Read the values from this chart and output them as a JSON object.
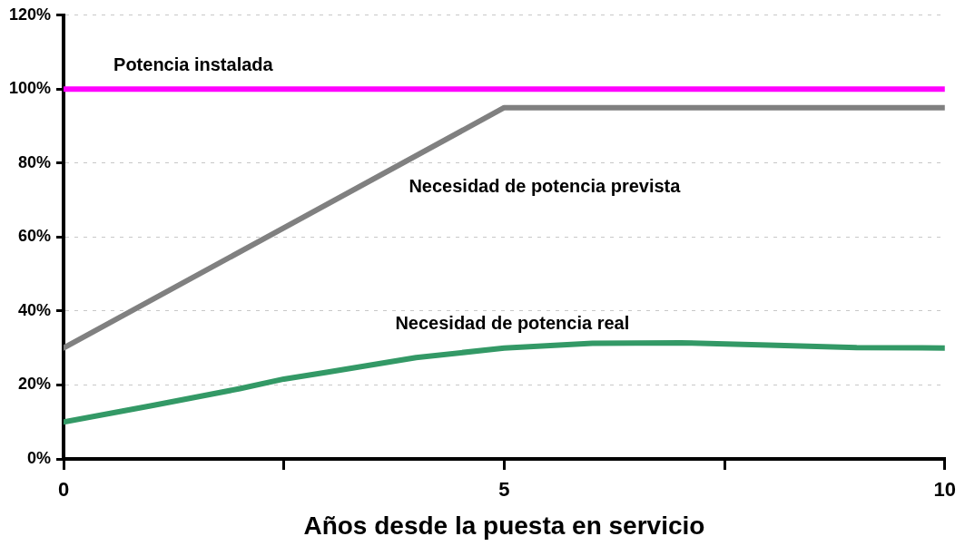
{
  "chart_data": {
    "type": "line",
    "xlabel": "Años desde la puesta en servicio",
    "xlim": [
      0,
      10
    ],
    "xticks": [
      0,
      {
        "value": 2.5,
        "label": null
      },
      5,
      {
        "value": 7.5,
        "label": null
      },
      10
    ],
    "ylim": [
      0,
      120
    ],
    "yticks": [
      {
        "value": 0,
        "label": "0%"
      },
      {
        "value": 20,
        "label": "20%"
      },
      {
        "value": 40,
        "label": "40%"
      },
      {
        "value": 60,
        "label": "60%"
      },
      {
        "value": 80,
        "label": "80%"
      },
      {
        "value": 100,
        "label": "100%"
      },
      {
        "value": 120,
        "label": "120%"
      }
    ],
    "grid": "y",
    "legend": false,
    "marker": "none",
    "line_style": "solid",
    "series": [
      {
        "name": "Potencia instalada",
        "color": "#ff00ff",
        "x": [
          0,
          10
        ],
        "values": [
          100,
          100
        ]
      },
      {
        "name": "Necesidad de potencia prevista",
        "color": "#808080",
        "x": [
          0,
          5,
          10
        ],
        "values": [
          30,
          95,
          95
        ]
      },
      {
        "name": "Necesidad de potencia real",
        "color": "#339966",
        "x": [
          0,
          1,
          2,
          2.5,
          3,
          4,
          5,
          6,
          7,
          8,
          9,
          10
        ],
        "values": [
          10,
          14.4,
          19,
          21.6,
          23.5,
          27.4,
          30,
          31.3,
          31.4,
          30.8,
          30.1,
          30
        ]
      }
    ]
  }
}
